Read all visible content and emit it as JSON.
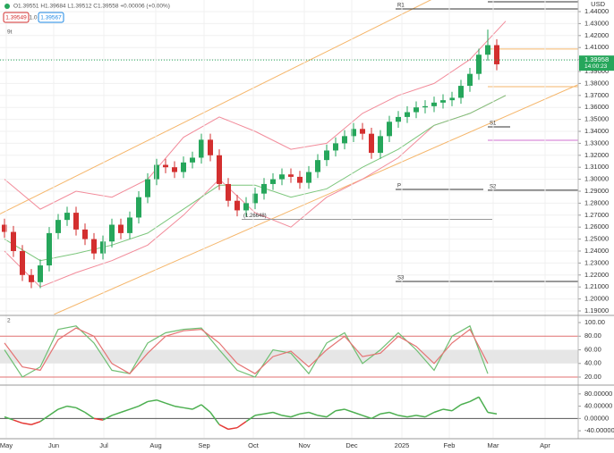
{
  "header": {
    "ohlc": "O1.39551 H1.39684 L1.39512 C1.39558 +0.00006 (+0.00%)",
    "input_red": "1.39549",
    "input_mid": "1.0",
    "input_blue": "1.39567",
    "indicator": "9t"
  },
  "chart_data": [
    {
      "type": "candlestick",
      "currency": "USD",
      "grid": true,
      "xlim": [
        0,
        64.6
      ],
      "ylim": [
        1.187,
        1.4497
      ],
      "xticks": [
        {
          "value": 0.7,
          "label": "May"
        },
        {
          "value": 6.0,
          "label": "Jun"
        },
        {
          "value": 11.6,
          "label": "Jul"
        },
        {
          "value": 17.4,
          "label": "Aug"
        },
        {
          "value": 22.8,
          "label": "Sep"
        },
        {
          "value": 28.3,
          "label": "Oct"
        },
        {
          "value": 34.0,
          "label": "Nov"
        },
        {
          "value": 39.3,
          "label": "Dec"
        },
        {
          "value": 44.9,
          "label": "2025"
        },
        {
          "value": 50.2,
          "label": "Feb"
        },
        {
          "value": 55.1,
          "label": "Mar"
        },
        {
          "value": 60.9,
          "label": "Apr"
        }
      ],
      "yticks": [
        {
          "value": 1.19,
          "label": "1.19000"
        },
        {
          "value": 1.2,
          "label": "1.20000"
        },
        {
          "value": 1.21,
          "label": "1.21000"
        },
        {
          "value": 1.22,
          "label": "1.22000"
        },
        {
          "value": 1.23,
          "label": "1.23000"
        },
        {
          "value": 1.24,
          "label": "1.24000"
        },
        {
          "value": 1.25,
          "label": "1.25000"
        },
        {
          "value": 1.26,
          "label": "1.26000"
        },
        {
          "value": 1.27,
          "label": "1.27000"
        },
        {
          "value": 1.28,
          "label": "1.28000"
        },
        {
          "value": 1.29,
          "label": "1.29000"
        },
        {
          "value": 1.3,
          "label": "1.30000"
        },
        {
          "value": 1.31,
          "label": "1.31000"
        },
        {
          "value": 1.32,
          "label": "1.32000"
        },
        {
          "value": 1.33,
          "label": "1.33000"
        },
        {
          "value": 1.34,
          "label": "1.34000"
        },
        {
          "value": 1.35,
          "label": "1.35000"
        },
        {
          "value": 1.36,
          "label": "1.36000"
        },
        {
          "value": 1.37,
          "label": "1.37000"
        },
        {
          "value": 1.38,
          "label": "1.38000"
        },
        {
          "value": 1.39,
          "label": "1.39000"
        },
        {
          "value": 1.4,
          "label": "1.40000"
        },
        {
          "value": 1.41,
          "label": "1.41000"
        },
        {
          "value": 1.42,
          "label": "1.42000"
        },
        {
          "value": 1.43,
          "label": "1.43000"
        },
        {
          "value": 1.44,
          "label": "1.44000"
        }
      ],
      "up_color": "#26a65b",
      "down_color": "#d32f2f",
      "x": [
        0.5,
        1.5,
        2.5,
        3.5,
        4.5,
        5.5,
        6.5,
        7.5,
        8.5,
        9.5,
        10.5,
        11.5,
        12.5,
        13.5,
        14.5,
        15.5,
        16.5,
        17.5,
        18.5,
        19.5,
        20.5,
        21.5,
        22.5,
        23.5,
        24.5,
        25.5,
        26.5,
        27.5,
        28.5,
        29.5,
        30.5,
        31.5,
        32.5,
        33.5,
        34.5,
        35.5,
        36.5,
        37.5,
        38.5,
        39.5,
        40.5,
        41.5,
        42.5,
        43.5,
        44.5,
        45.5,
        46.5,
        47.5,
        48.5,
        49.5,
        50.5,
        51.5,
        52.5,
        53.5,
        54.5,
        55.5
      ],
      "open": [
        1.262,
        1.256,
        1.24,
        1.22,
        1.214,
        1.228,
        1.255,
        1.266,
        1.272,
        1.258,
        1.25,
        1.238,
        1.248,
        1.262,
        1.255,
        1.268,
        1.285,
        1.3,
        1.312,
        1.31,
        1.306,
        1.314,
        1.318,
        1.333,
        1.32,
        1.296,
        1.282,
        1.274,
        1.28,
        1.288,
        1.296,
        1.3,
        1.304,
        1.302,
        1.297,
        1.306,
        1.316,
        1.324,
        1.33,
        1.336,
        1.342,
        1.338,
        1.322,
        1.336,
        1.348,
        1.352,
        1.356,
        1.36,
        1.361,
        1.364,
        1.366,
        1.368,
        1.378,
        1.388,
        1.404,
        1.412
      ],
      "high": [
        1.267,
        1.261,
        1.245,
        1.225,
        1.233,
        1.26,
        1.271,
        1.277,
        1.277,
        1.263,
        1.255,
        1.253,
        1.267,
        1.267,
        1.273,
        1.29,
        1.305,
        1.317,
        1.317,
        1.315,
        1.319,
        1.323,
        1.338,
        1.338,
        1.325,
        1.301,
        1.287,
        1.285,
        1.293,
        1.301,
        1.305,
        1.309,
        1.309,
        1.307,
        1.311,
        1.321,
        1.329,
        1.335,
        1.341,
        1.347,
        1.347,
        1.343,
        1.341,
        1.353,
        1.357,
        1.361,
        1.365,
        1.366,
        1.369,
        1.371,
        1.373,
        1.383,
        1.393,
        1.409,
        1.425,
        1.417
      ],
      "low": [
        1.251,
        1.235,
        1.215,
        1.209,
        1.209,
        1.223,
        1.25,
        1.261,
        1.253,
        1.245,
        1.233,
        1.233,
        1.243,
        1.25,
        1.25,
        1.263,
        1.28,
        1.295,
        1.305,
        1.301,
        1.301,
        1.309,
        1.313,
        1.315,
        1.291,
        1.277,
        1.269,
        1.269,
        1.275,
        1.283,
        1.291,
        1.295,
        1.297,
        1.292,
        1.292,
        1.301,
        1.311,
        1.319,
        1.325,
        1.331,
        1.333,
        1.317,
        1.317,
        1.331,
        1.343,
        1.347,
        1.351,
        1.355,
        1.356,
        1.359,
        1.361,
        1.363,
        1.373,
        1.383,
        1.399,
        1.391
      ],
      "close": [
        1.256,
        1.24,
        1.22,
        1.214,
        1.228,
        1.255,
        1.266,
        1.272,
        1.258,
        1.25,
        1.238,
        1.248,
        1.262,
        1.255,
        1.268,
        1.285,
        1.3,
        1.312,
        1.31,
        1.306,
        1.314,
        1.318,
        1.333,
        1.32,
        1.296,
        1.282,
        1.274,
        1.28,
        1.288,
        1.296,
        1.3,
        1.304,
        1.302,
        1.297,
        1.306,
        1.316,
        1.324,
        1.33,
        1.336,
        1.342,
        1.338,
        1.322,
        1.336,
        1.348,
        1.352,
        1.356,
        1.36,
        1.361,
        1.364,
        1.366,
        1.368,
        1.378,
        1.388,
        1.404,
        1.412,
        1.396
      ],
      "overlays": [
        {
          "color": "#f28b9a",
          "x": [
            0.5,
            4.5,
            8.5,
            12.5,
            16.5,
            20.5,
            24.5,
            28.5,
            32.5,
            36.5,
            40.5,
            44.5,
            48.5,
            52.5,
            56.5
          ],
          "values": [
            1.3,
            1.275,
            1.29,
            1.285,
            1.3,
            1.335,
            1.352,
            1.34,
            1.325,
            1.33,
            1.355,
            1.37,
            1.38,
            1.4,
            1.432
          ]
        },
        {
          "color": "#f28b9a",
          "x": [
            0.5,
            4.5,
            8.5,
            12.5,
            16.5,
            20.5,
            24.5,
            28.5,
            32.5,
            36.5,
            40.5,
            44.5,
            48.5,
            52.5,
            56.5
          ],
          "values": [
            1.24,
            1.21,
            1.222,
            1.232,
            1.245,
            1.27,
            1.3,
            1.272,
            1.26,
            1.285,
            1.3,
            1.318,
            1.345,
            1.355,
            1.37
          ]
        },
        {
          "color": "#7cc67c",
          "x": [
            0.5,
            4.5,
            8.5,
            12.5,
            16.5,
            20.5,
            24.5,
            28.5,
            32.5,
            36.5,
            40.5,
            44.5,
            48.5,
            52.5,
            56.5
          ],
          "values": [
            1.25,
            1.232,
            1.238,
            1.245,
            1.255,
            1.275,
            1.295,
            1.295,
            1.285,
            1.292,
            1.31,
            1.325,
            1.345,
            1.355,
            1.37
          ]
        }
      ],
      "trendlines": [
        {
          "color": "#f5b66b",
          "x": [
            0,
            64.6
          ],
          "values": [
            1.271,
            1.511
          ]
        },
        {
          "color": "#f5b66b",
          "x": [
            6,
            64.6
          ],
          "values": [
            1.187,
            1.379
          ]
        }
      ],
      "levels": [
        {
          "label": "R2",
          "value": 1.4482,
          "x": [
            54.5,
            64.6
          ],
          "color": "#333"
        },
        {
          "label": "R1",
          "value": 1.4422,
          "x": [
            44.2,
            64.6
          ],
          "color": "#333"
        },
        {
          "value": 1.4087,
          "x": [
            54.5,
            64.6
          ],
          "color": "#f5b66b"
        },
        {
          "value": 1.3773,
          "x": [
            54.5,
            64.6
          ],
          "color": "#f5b66b"
        },
        {
          "label": "S1",
          "value": 1.3437,
          "x": [
            54.5,
            57.0
          ],
          "color": "#333"
        },
        {
          "value": 1.3325,
          "x": [
            54.5,
            64.6
          ],
          "color": "#d070d0"
        },
        {
          "label": "P",
          "value": 1.2915,
          "x": [
            44.2,
            54.0
          ],
          "color": "#333"
        },
        {
          "label": "S2",
          "value": 1.2908,
          "x": [
            54.5,
            64.6
          ],
          "color": "#333"
        },
        {
          "label": "(1.26648)",
          "value": 1.26648,
          "x": [
            27.0,
            55.0
          ],
          "color": "#999"
        },
        {
          "label": "S3",
          "value": 1.2146,
          "x": [
            44.2,
            64.6
          ],
          "color": "#333"
        }
      ],
      "last_price": {
        "value": 1.39958,
        "label": "1.39958",
        "countdown": "14:00:23",
        "color": "#26a65b"
      }
    },
    {
      "type": "line",
      "label": "2",
      "xlim": [
        0,
        64.6
      ],
      "ylim": [
        9.5,
        107.9
      ],
      "yticks": [
        {
          "value": 100,
          "label": "100.00"
        },
        {
          "value": 80,
          "label": "80.00"
        },
        {
          "value": 60,
          "label": "60.00"
        },
        {
          "value": 40,
          "label": "40.00"
        },
        {
          "value": 20,
          "label": "20.00"
        }
      ],
      "band": [
        40,
        60
      ],
      "band_color": "#e6e6e6",
      "hlines": [
        80,
        20
      ],
      "hline_color": "#e07070",
      "x": [
        0.5,
        2.5,
        4.5,
        6.5,
        8.5,
        10.5,
        12.5,
        14.5,
        16.5,
        18.5,
        20.5,
        22.5,
        24.5,
        26.5,
        28.5,
        30.5,
        32.5,
        34.5,
        36.5,
        38.5,
        40.5,
        42.5,
        44.5,
        46.5,
        48.5,
        50.5,
        52.5,
        54.5
      ],
      "series": [
        {
          "color": "#6fbf73",
          "values": [
            60,
            20,
            35,
            90,
            95,
            70,
            30,
            25,
            70,
            85,
            90,
            92,
            60,
            30,
            20,
            60,
            55,
            25,
            70,
            85,
            40,
            60,
            85,
            60,
            30,
            80,
            95,
            25
          ]
        },
        {
          "color": "#e57373",
          "values": [
            70,
            35,
            30,
            75,
            92,
            80,
            40,
            25,
            55,
            80,
            88,
            90,
            70,
            40,
            25,
            50,
            58,
            35,
            60,
            80,
            50,
            55,
            80,
            65,
            40,
            70,
            90,
            40
          ]
        }
      ]
    },
    {
      "type": "momentum",
      "xlim": [
        0,
        64.6
      ],
      "ylim": [
        -62.9,
        105.7
      ],
      "yticks": [
        {
          "value": 80,
          "label": "80.00000"
        },
        {
          "value": 40,
          "label": "40.00000"
        },
        {
          "value": 0,
          "label": "0.00000"
        },
        {
          "value": -40,
          "label": "-40.00000"
        }
      ],
      "pos_color": "#4caf50",
      "neg_color": "#e53935",
      "x": [
        0.5,
        1.5,
        2.5,
        3.5,
        4.5,
        5.5,
        6.5,
        7.5,
        8.5,
        9.5,
        10.5,
        11.5,
        12.5,
        13.5,
        14.5,
        15.5,
        16.5,
        17.5,
        18.5,
        19.5,
        20.5,
        21.5,
        22.5,
        23.5,
        24.5,
        25.5,
        26.5,
        27.5,
        28.5,
        29.5,
        30.5,
        31.5,
        32.5,
        33.5,
        34.5,
        35.5,
        36.5,
        37.5,
        38.5,
        39.5,
        40.5,
        41.5,
        42.5,
        43.5,
        44.5,
        45.5,
        46.5,
        47.5,
        48.5,
        49.5,
        50.5,
        51.5,
        52.5,
        53.5,
        54.5,
        55.5
      ],
      "values": [
        5,
        -5,
        -15,
        -20,
        -10,
        10,
        30,
        40,
        35,
        20,
        0,
        -5,
        10,
        20,
        30,
        40,
        55,
        60,
        50,
        40,
        35,
        30,
        45,
        20,
        -20,
        -35,
        -30,
        -10,
        10,
        15,
        20,
        10,
        5,
        15,
        20,
        10,
        5,
        25,
        30,
        20,
        10,
        0,
        15,
        20,
        10,
        5,
        10,
        5,
        20,
        30,
        25,
        45,
        55,
        70,
        20,
        15
      ]
    }
  ]
}
